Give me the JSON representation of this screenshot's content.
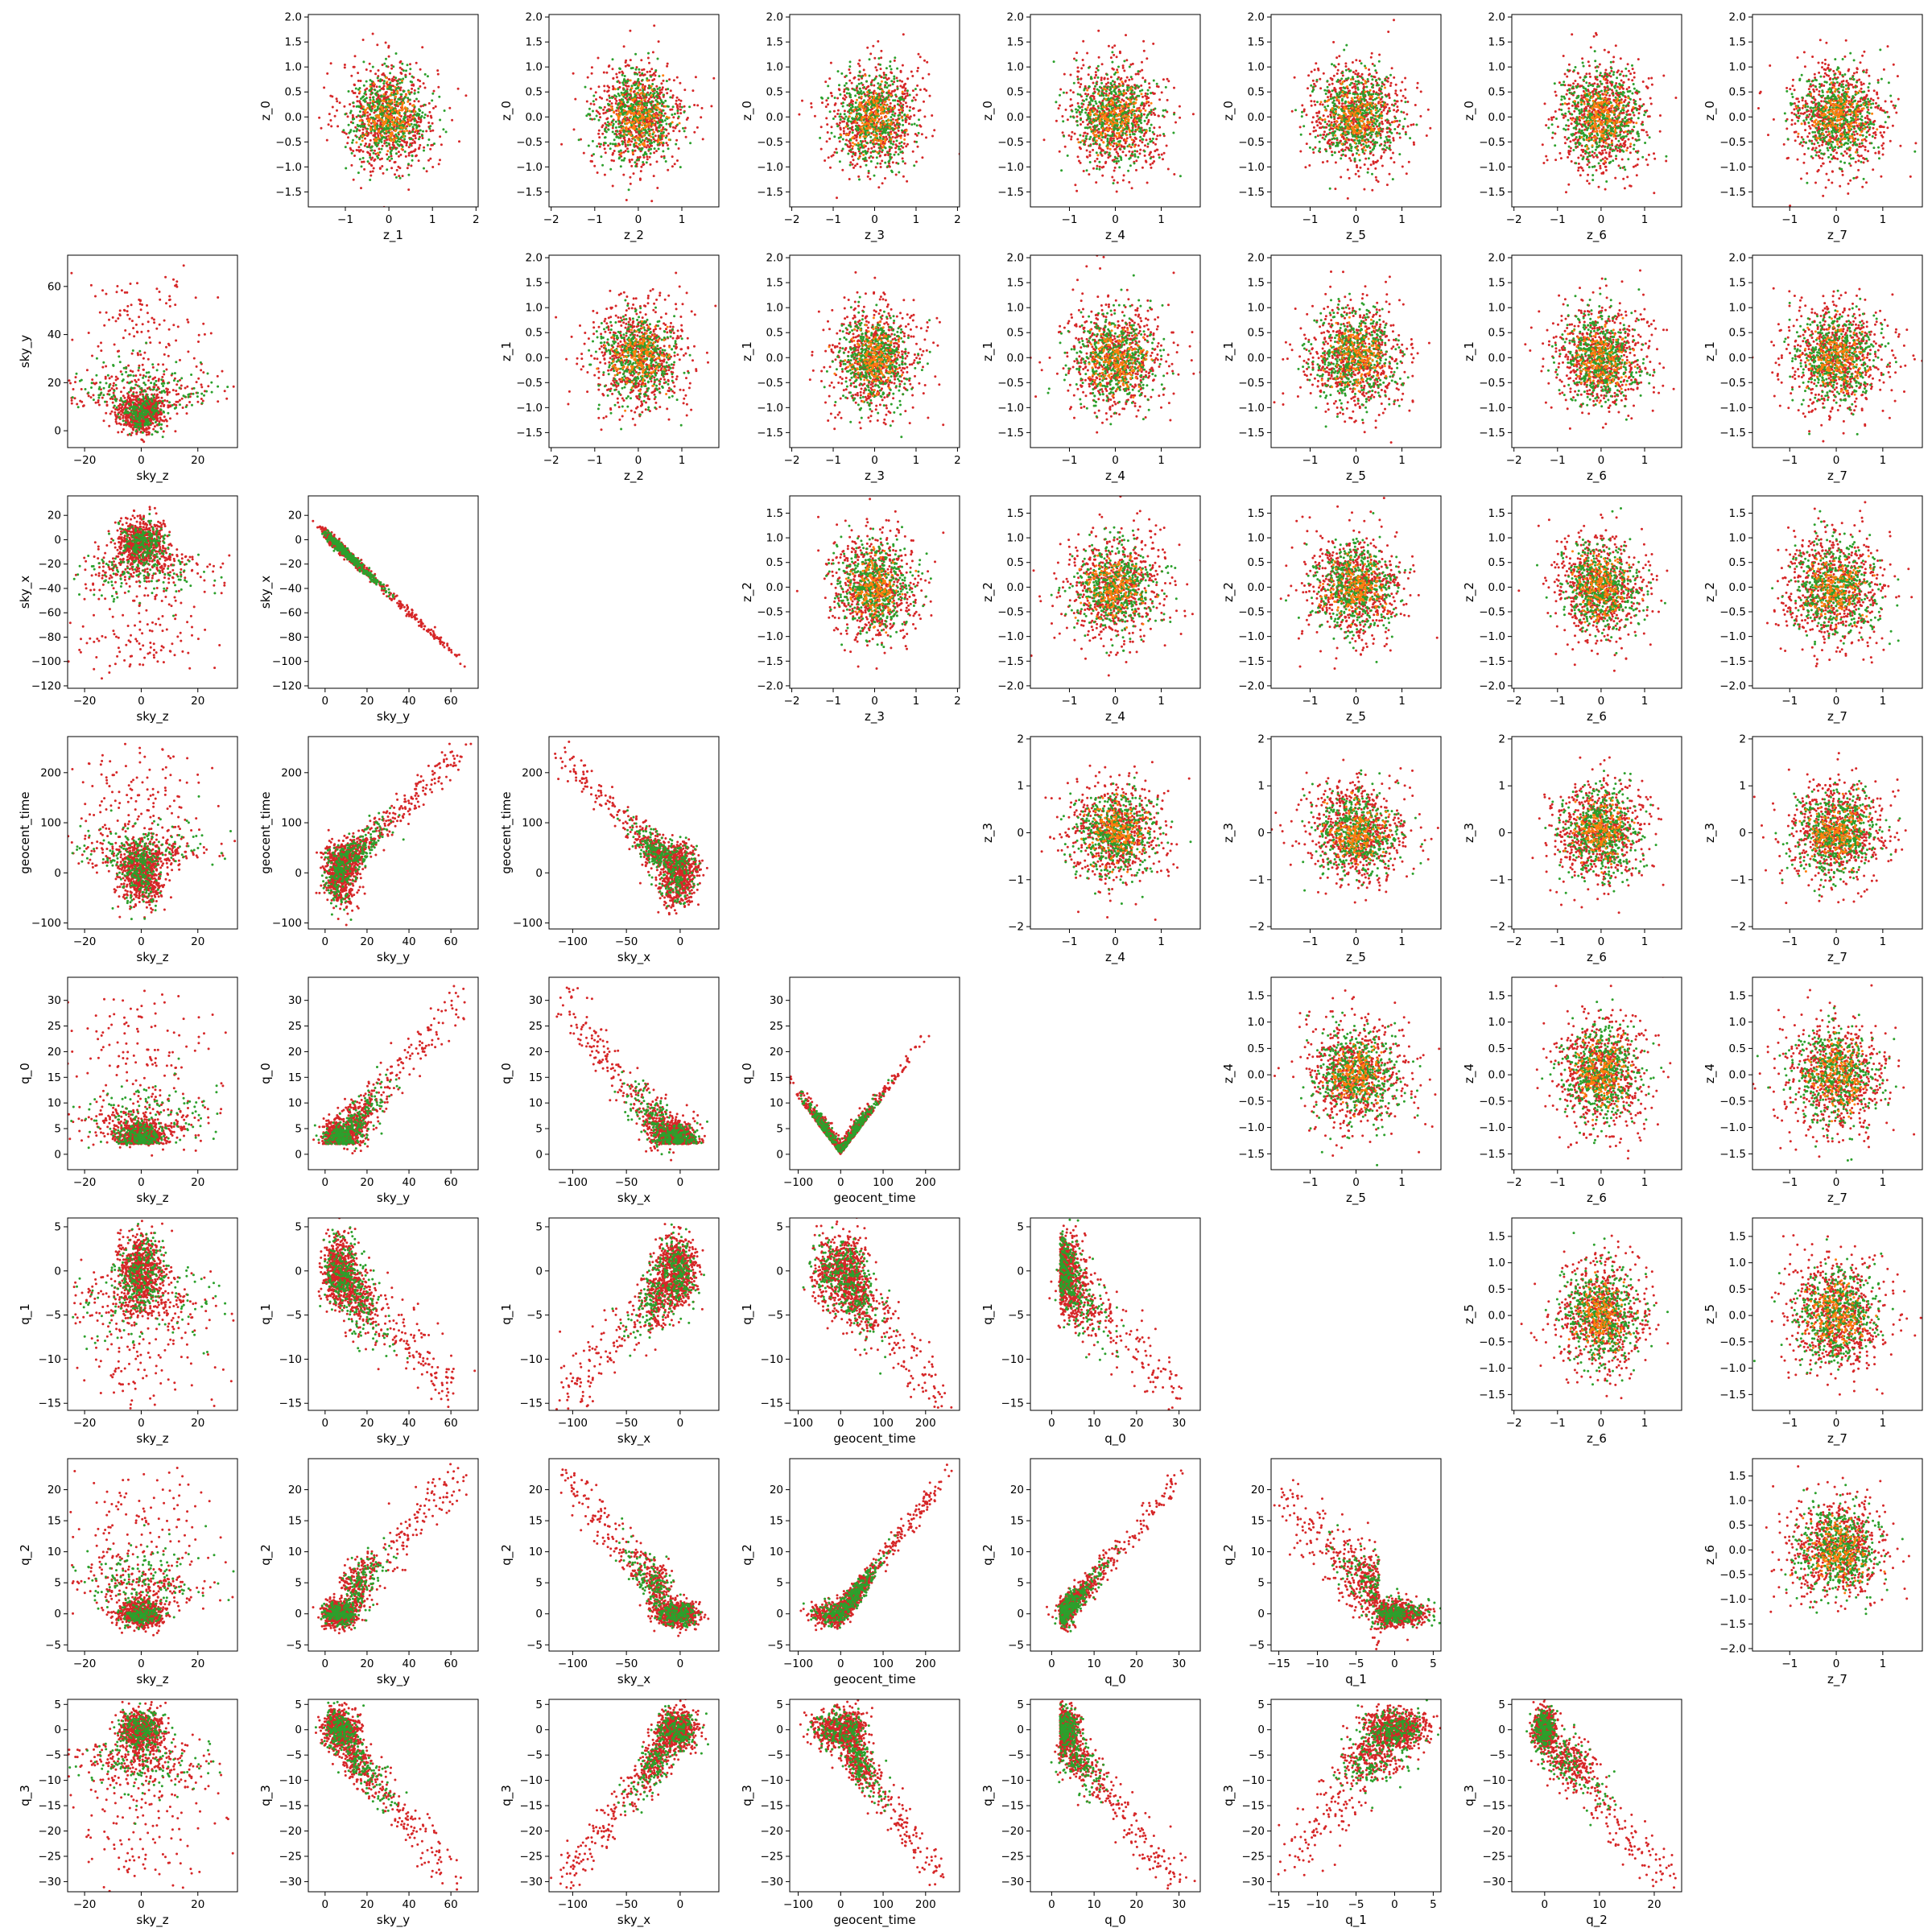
{
  "colors": {
    "green": "#2ca02c",
    "red": "#d62728",
    "orange": "#ff7f0e"
  },
  "chart_data": {
    "type": "scatter",
    "layout": "pair-grid 8x8",
    "grid": false,
    "legend": "none",
    "variables": {
      "z_0": {
        "ticks": [
          -1.5,
          -1.0,
          -0.5,
          0.0,
          0.5,
          1.0,
          1.5,
          2.0
        ],
        "tick_labels": [
          "−1.5",
          "−1.0",
          "−0.5",
          "0.0",
          "0.5",
          "1.0",
          "1.5",
          "2.0"
        ],
        "ylim": [
          -1.8,
          2.05
        ]
      },
      "z_1": {
        "ticks": [
          -1.5,
          -1.0,
          -0.5,
          0.0,
          0.5,
          1.0,
          1.5,
          2.0
        ],
        "tick_labels": [
          "−1.5",
          "−1.0",
          "−0.5",
          "0.0",
          "0.5",
          "1.0",
          "1.5",
          "2.0"
        ],
        "ylim": [
          -1.8,
          2.05
        ],
        "xticks": [
          -1,
          0,
          1,
          2
        ],
        "xtick_labels": [
          "−1",
          "0",
          "1",
          "2"
        ],
        "xlim": [
          -1.85,
          2.05
        ]
      },
      "z_2": {
        "ticks": [
          -2.0,
          -1.5,
          -1.0,
          -0.5,
          0.0,
          0.5,
          1.0,
          1.5
        ],
        "tick_labels": [
          "−2.0",
          "−1.5",
          "−1.0",
          "−0.5",
          "0.0",
          "0.5",
          "1.0",
          "1.5"
        ],
        "ylim": [
          -2.05,
          1.85
        ],
        "xticks": [
          -2,
          -1,
          0,
          1
        ],
        "xtick_labels": [
          "−2",
          "−1",
          "0",
          "1"
        ],
        "xlim": [
          -2.05,
          1.85
        ]
      },
      "z_3": {
        "ticks": [
          -2,
          -1,
          0,
          1,
          2
        ],
        "tick_labels": [
          "−2",
          "−1",
          "0",
          "1",
          "2"
        ],
        "ylim": [
          -2.05,
          2.05
        ],
        "xticks": [
          -2,
          -1,
          0,
          1,
          2
        ],
        "xtick_labels": [
          "−2",
          "−1",
          "0",
          "1",
          "2"
        ],
        "xlim": [
          -2.05,
          2.05
        ]
      },
      "z_4": {
        "ticks": [
          -1.5,
          -1.0,
          -0.5,
          0.0,
          0.5,
          1.0,
          1.5
        ],
        "tick_labels": [
          "−1.5",
          "−1.0",
          "−0.5",
          "0.0",
          "0.5",
          "1.0",
          "1.5"
        ],
        "ylim": [
          -1.8,
          1.85
        ],
        "xticks": [
          -1,
          0,
          1
        ],
        "xtick_labels": [
          "−1",
          "0",
          "1"
        ],
        "xlim": [
          -1.85,
          1.85
        ]
      },
      "z_5": {
        "ticks": [
          -1.5,
          -1.0,
          -0.5,
          0.0,
          0.5,
          1.0,
          1.5
        ],
        "tick_labels": [
          "−1.5",
          "−1.0",
          "−0.5",
          "0.0",
          "0.5",
          "1.0",
          "1.5"
        ],
        "ylim": [
          -1.8,
          1.85
        ],
        "xticks": [
          -1,
          0,
          1
        ],
        "xtick_labels": [
          "−1",
          "0",
          "1"
        ],
        "xlim": [
          -1.85,
          1.85
        ]
      },
      "z_6": {
        "ticks": [
          -2.0,
          -1.5,
          -1.0,
          -0.5,
          0.0,
          0.5,
          1.0,
          1.5
        ],
        "tick_labels": [
          "−2.0",
          "−1.5",
          "−1.0",
          "−0.5",
          "0.0",
          "0.5",
          "1.0",
          "1.5"
        ],
        "ylim": [
          -2.05,
          1.85
        ],
        "xticks": [
          -2,
          -1,
          0,
          1
        ],
        "xtick_labels": [
          "−2",
          "−1",
          "0",
          "1"
        ],
        "xlim": [
          -2.05,
          1.85
        ]
      },
      "z_7": {
        "xticks": [
          -1,
          0,
          1
        ],
        "xtick_labels": [
          "−1",
          "0",
          "1"
        ],
        "xlim": [
          -1.8,
          1.85
        ]
      },
      "sky_z": {
        "xticks": [
          -20,
          0,
          20
        ],
        "xtick_labels": [
          "−20",
          "0",
          "20"
        ],
        "xlim": [
          -26,
          34
        ]
      },
      "sky_y": {
        "ticks": [
          0,
          20,
          40,
          60
        ],
        "tick_labels": [
          "0",
          "20",
          "40",
          "60"
        ],
        "ylim": [
          -7,
          73
        ],
        "xticks": [
          0,
          20,
          40,
          60
        ],
        "xtick_labels": [
          "0",
          "20",
          "40",
          "60"
        ],
        "xlim": [
          -8,
          73
        ]
      },
      "sky_x": {
        "ticks": [
          -120,
          -100,
          -80,
          -60,
          -40,
          -20,
          0,
          20
        ],
        "tick_labels": [
          "−120",
          "−100",
          "−80",
          "−60",
          "−40",
          "−20",
          "0",
          "20"
        ],
        "ylim": [
          -122,
          36
        ],
        "xticks": [
          -100,
          -50,
          0
        ],
        "xtick_labels": [
          "−100",
          "−50",
          "0"
        ],
        "xlim": [
          -122,
          36
        ]
      },
      "geocent_time": {
        "ticks": [
          -100,
          0,
          100,
          200
        ],
        "tick_labels": [
          "−100",
          "0",
          "100",
          "200"
        ],
        "ylim": [
          -112,
          272
        ],
        "xticks": [
          -100,
          0,
          100,
          200
        ],
        "xtick_labels": [
          "−100",
          "0",
          "100",
          "200"
        ],
        "xlim": [
          -120,
          280
        ]
      },
      "q_0": {
        "ticks": [
          0,
          5,
          10,
          15,
          20,
          25,
          30
        ],
        "tick_labels": [
          "0",
          "5",
          "10",
          "15",
          "20",
          "25",
          "30"
        ],
        "ylim": [
          -3,
          34.5
        ],
        "xticks": [
          0,
          10,
          20,
          30
        ],
        "xtick_labels": [
          "0",
          "10",
          "20",
          "30"
        ],
        "xlim": [
          -5,
          35
        ]
      },
      "q_1": {
        "ticks": [
          -15,
          -10,
          -5,
          0,
          5
        ],
        "tick_labels": [
          "−15",
          "−10",
          "−5",
          "0",
          "5"
        ],
        "ylim": [
          -15.8,
          6
        ],
        "xticks": [
          -15,
          -10,
          -5,
          0,
          5
        ],
        "xtick_labels": [
          "−15",
          "−10",
          "−5",
          "0",
          "5"
        ],
        "xlim": [
          -16,
          6
        ]
      },
      "q_2": {
        "ticks": [
          -5,
          0,
          5,
          10,
          15,
          20
        ],
        "tick_labels": [
          "−5",
          "0",
          "5",
          "10",
          "15",
          "20"
        ],
        "ylim": [
          -6,
          25
        ],
        "xticks": [
          0,
          10,
          20
        ],
        "xtick_labels": [
          "0",
          "10",
          "20"
        ],
        "xlim": [
          -6,
          25
        ]
      },
      "q_3": {
        "ticks": [
          -30,
          -25,
          -20,
          -15,
          -10,
          -5,
          0,
          5
        ],
        "tick_labels": [
          "−30",
          "−25",
          "−20",
          "−15",
          "−10",
          "−5",
          "0",
          "5"
        ],
        "ylim": [
          -32,
          6
        ]
      },
      "z_0_row": {},
      "z_1_row": {},
      "z_2_row": {},
      "z_3_row": {},
      "z_4_row": {},
      "z_5_row": {},
      "z_6_row": {}
    },
    "panels": [
      {
        "row": 0,
        "col": 1,
        "x": "z_1",
        "y": "z_0",
        "xlabel": "z_1",
        "ylabel": "z_0",
        "shape": "blob"
      },
      {
        "row": 0,
        "col": 2,
        "x": "z_2",
        "y": "z_0",
        "xlabel": "z_2",
        "ylabel": "z_0",
        "shape": "blob"
      },
      {
        "row": 0,
        "col": 3,
        "x": "z_3",
        "y": "z_0",
        "xlabel": "z_3",
        "ylabel": "z_0",
        "shape": "blob"
      },
      {
        "row": 0,
        "col": 4,
        "x": "z_4",
        "y": "z_0",
        "xlabel": "z_4",
        "ylabel": "z_0",
        "shape": "blob"
      },
      {
        "row": 0,
        "col": 5,
        "x": "z_5",
        "y": "z_0",
        "xlabel": "z_5",
        "ylabel": "z_0",
        "shape": "blob"
      },
      {
        "row": 0,
        "col": 6,
        "x": "z_6",
        "y": "z_0",
        "xlabel": "z_6",
        "ylabel": "z_0",
        "shape": "blob"
      },
      {
        "row": 0,
        "col": 7,
        "x": "z_7",
        "y": "z_0",
        "xlabel": "z_7",
        "ylabel": "z_0",
        "shape": "blob"
      },
      {
        "row": 1,
        "col": 0,
        "x": "sky_z",
        "y": "sky_y",
        "xlabel": "sky_z",
        "ylabel": "sky_y",
        "shape": "sky_y_vs_sky_z"
      },
      {
        "row": 1,
        "col": 2,
        "x": "z_2",
        "y": "z_1",
        "xlabel": "z_2",
        "ylabel": "z_1",
        "shape": "blob"
      },
      {
        "row": 1,
        "col": 3,
        "x": "z_3",
        "y": "z_1",
        "xlabel": "z_3",
        "ylabel": "z_1",
        "shape": "blob"
      },
      {
        "row": 1,
        "col": 4,
        "x": "z_4",
        "y": "z_1",
        "xlabel": "z_4",
        "ylabel": "z_1",
        "shape": "blob"
      },
      {
        "row": 1,
        "col": 5,
        "x": "z_5",
        "y": "z_1",
        "xlabel": "z_5",
        "ylabel": "z_1",
        "shape": "blob"
      },
      {
        "row": 1,
        "col": 6,
        "x": "z_6",
        "y": "z_1",
        "xlabel": "z_6",
        "ylabel": "z_1",
        "shape": "blob"
      },
      {
        "row": 1,
        "col": 7,
        "x": "z_7",
        "y": "z_1",
        "xlabel": "z_7",
        "ylabel": "z_1",
        "shape": "blob"
      },
      {
        "row": 2,
        "col": 0,
        "x": "sky_z",
        "y": "sky_x",
        "xlabel": "sky_z",
        "ylabel": "sky_x",
        "shape": "sky_x_vs_sky_z"
      },
      {
        "row": 2,
        "col": 1,
        "x": "sky_y",
        "y": "sky_x",
        "xlabel": "sky_y",
        "ylabel": "sky_x",
        "shape": "sky_x_vs_sky_y"
      },
      {
        "row": 2,
        "col": 3,
        "x": "z_3",
        "y": "z_2",
        "xlabel": "z_3",
        "ylabel": "z_2",
        "shape": "blob"
      },
      {
        "row": 2,
        "col": 4,
        "x": "z_4",
        "y": "z_2",
        "xlabel": "z_4",
        "ylabel": "z_2",
        "shape": "blob"
      },
      {
        "row": 2,
        "col": 5,
        "x": "z_5",
        "y": "z_2",
        "xlabel": "z_5",
        "ylabel": "z_2",
        "shape": "blob"
      },
      {
        "row": 2,
        "col": 6,
        "x": "z_6",
        "y": "z_2",
        "xlabel": "z_6",
        "ylabel": "z_2",
        "shape": "blob"
      },
      {
        "row": 2,
        "col": 7,
        "x": "z_7",
        "y": "z_2",
        "xlabel": "z_7",
        "ylabel": "z_2",
        "shape": "blob"
      },
      {
        "row": 3,
        "col": 0,
        "x": "sky_z",
        "y": "geocent_time",
        "xlabel": "sky_z",
        "ylabel": "geocent_time",
        "shape": "gt_vs_sky_z"
      },
      {
        "row": 3,
        "col": 1,
        "x": "sky_y",
        "y": "geocent_time",
        "xlabel": "sky_y",
        "ylabel": "geocent_time",
        "shape": "gt_vs_sky_y"
      },
      {
        "row": 3,
        "col": 2,
        "x": "sky_x",
        "y": "geocent_time",
        "xlabel": "sky_x",
        "ylabel": "geocent_time",
        "shape": "gt_vs_sky_x"
      },
      {
        "row": 3,
        "col": 4,
        "x": "z_4",
        "y": "z_3",
        "xlabel": "z_4",
        "ylabel": "z_3",
        "shape": "blob"
      },
      {
        "row": 3,
        "col": 5,
        "x": "z_5",
        "y": "z_3",
        "xlabel": "z_5",
        "ylabel": "z_3",
        "shape": "blob"
      },
      {
        "row": 3,
        "col": 6,
        "x": "z_6",
        "y": "z_3",
        "xlabel": "z_6",
        "ylabel": "z_3",
        "shape": "blob"
      },
      {
        "row": 3,
        "col": 7,
        "x": "z_7",
        "y": "z_3",
        "xlabel": "z_7",
        "ylabel": "z_3",
        "shape": "blob"
      },
      {
        "row": 4,
        "col": 0,
        "x": "sky_z",
        "y": "q_0",
        "xlabel": "sky_z",
        "ylabel": "q_0",
        "shape": "q0_vs_sky_z"
      },
      {
        "row": 4,
        "col": 1,
        "x": "sky_y",
        "y": "q_0",
        "xlabel": "sky_y",
        "ylabel": "q_0",
        "shape": "q0_vs_sky_y"
      },
      {
        "row": 4,
        "col": 2,
        "x": "sky_x",
        "y": "q_0",
        "xlabel": "sky_x",
        "ylabel": "q_0",
        "shape": "q0_vs_sky_x"
      },
      {
        "row": 4,
        "col": 3,
        "x": "geocent_time",
        "y": "q_0",
        "xlabel": "geocent_time",
        "ylabel": "q_0",
        "shape": "q0_vs_gt"
      },
      {
        "row": 4,
        "col": 5,
        "x": "z_5",
        "y": "z_4",
        "xlabel": "z_5",
        "ylabel": "z_4",
        "shape": "blob"
      },
      {
        "row": 4,
        "col": 6,
        "x": "z_6",
        "y": "z_4",
        "xlabel": "z_6",
        "ylabel": "z_4",
        "shape": "blob"
      },
      {
        "row": 4,
        "col": 7,
        "x": "z_7",
        "y": "z_4",
        "xlabel": "z_7",
        "ylabel": "z_4",
        "shape": "blob"
      },
      {
        "row": 5,
        "col": 0,
        "x": "sky_z",
        "y": "q_1",
        "xlabel": "sky_z",
        "ylabel": "q_1",
        "shape": "q1_vs_sky_z"
      },
      {
        "row": 5,
        "col": 1,
        "x": "sky_y",
        "y": "q_1",
        "xlabel": "sky_y",
        "ylabel": "q_1",
        "shape": "q1_vs_sky_y"
      },
      {
        "row": 5,
        "col": 2,
        "x": "sky_x",
        "y": "q_1",
        "xlabel": "sky_x",
        "ylabel": "q_1",
        "shape": "q1_vs_sky_x"
      },
      {
        "row": 5,
        "col": 3,
        "x": "geocent_time",
        "y": "q_1",
        "xlabel": "geocent_time",
        "ylabel": "q_1",
        "shape": "q1_vs_gt"
      },
      {
        "row": 5,
        "col": 4,
        "x": "q_0",
        "y": "q_1",
        "xlabel": "q_0",
        "ylabel": "q_1",
        "shape": "q1_vs_q0"
      },
      {
        "row": 5,
        "col": 6,
        "x": "z_6",
        "y": "z_5",
        "xlabel": "z_6",
        "ylabel": "z_5",
        "shape": "blob"
      },
      {
        "row": 5,
        "col": 7,
        "x": "z_7",
        "y": "z_5",
        "xlabel": "z_7",
        "ylabel": "z_5",
        "shape": "blob"
      },
      {
        "row": 6,
        "col": 0,
        "x": "sky_z",
        "y": "q_2",
        "xlabel": "sky_z",
        "ylabel": "q_2",
        "shape": "q2_vs_sky_z"
      },
      {
        "row": 6,
        "col": 1,
        "x": "sky_y",
        "y": "q_2",
        "xlabel": "sky_y",
        "ylabel": "q_2",
        "shape": "q2_vs_sky_y"
      },
      {
        "row": 6,
        "col": 2,
        "x": "sky_x",
        "y": "q_2",
        "xlabel": "sky_x",
        "ylabel": "q_2",
        "shape": "q2_vs_sky_x"
      },
      {
        "row": 6,
        "col": 3,
        "x": "geocent_time",
        "y": "q_2",
        "xlabel": "geocent_time",
        "ylabel": "q_2",
        "shape": "q2_vs_gt"
      },
      {
        "row": 6,
        "col": 4,
        "x": "q_0",
        "y": "q_2",
        "xlabel": "q_0",
        "ylabel": "q_2",
        "shape": "q2_vs_q0"
      },
      {
        "row": 6,
        "col": 5,
        "x": "q_1",
        "y": "q_2",
        "xlabel": "q_1",
        "ylabel": "q_2",
        "shape": "q2_vs_q1"
      },
      {
        "row": 6,
        "col": 7,
        "x": "z_7",
        "y": "z_6",
        "xlabel": "z_7",
        "ylabel": "z_6",
        "shape": "blob"
      },
      {
        "row": 7,
        "col": 0,
        "x": "sky_z",
        "y": "q_3",
        "xlabel": "sky_z",
        "ylabel": "q_3",
        "shape": "q3_vs_sky_z"
      },
      {
        "row": 7,
        "col": 1,
        "x": "sky_y",
        "y": "q_3",
        "xlabel": "sky_y",
        "ylabel": "q_3",
        "shape": "q3_vs_sky_y"
      },
      {
        "row": 7,
        "col": 2,
        "x": "sky_x",
        "y": "q_3",
        "xlabel": "sky_x",
        "ylabel": "q_3",
        "shape": "q3_vs_sky_x"
      },
      {
        "row": 7,
        "col": 3,
        "x": "geocent_time",
        "y": "q_3",
        "xlabel": "geocent_time",
        "ylabel": "q_3",
        "shape": "q3_vs_gt"
      },
      {
        "row": 7,
        "col": 4,
        "x": "q_0",
        "y": "q_3",
        "xlabel": "q_0",
        "ylabel": "q_3",
        "shape": "q3_vs_q0"
      },
      {
        "row": 7,
        "col": 5,
        "x": "q_1",
        "y": "q_3",
        "xlabel": "q_1",
        "ylabel": "q_3",
        "shape": "q3_vs_q1"
      },
      {
        "row": 7,
        "col": 6,
        "x": "q_2",
        "y": "q_3",
        "xlabel": "q_2",
        "ylabel": "q_3",
        "shape": "q3_vs_q2"
      }
    ]
  }
}
